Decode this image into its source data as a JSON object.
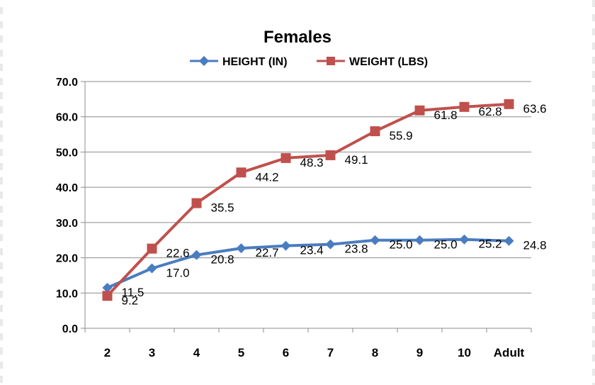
{
  "chart_data": {
    "type": "line",
    "title": "Females",
    "categories": [
      "2",
      "3",
      "4",
      "5",
      "6",
      "7",
      "8",
      "9",
      "10",
      "Adult"
    ],
    "series": [
      {
        "name": "HEIGHT (IN)",
        "color": "#4a7cc0",
        "marker": "diamond",
        "values": [
          11.5,
          17.0,
          20.8,
          22.7,
          23.4,
          23.8,
          25.0,
          25.0,
          25.2,
          24.8
        ],
        "labels": [
          "11.5",
          "17.0",
          "20.8",
          "22.7",
          "23.4",
          "23.8",
          "25.0",
          "25.0",
          "25.2",
          "24.8"
        ]
      },
      {
        "name": "WEIGHT (LBS)",
        "color": "#c0504d",
        "marker": "square",
        "values": [
          9.2,
          22.6,
          35.5,
          44.2,
          48.3,
          49.1,
          55.9,
          61.8,
          62.8,
          63.6
        ],
        "labels": [
          "9.2",
          "22.6",
          "35.5",
          "44.2",
          "48.3",
          "49.1",
          "55.9",
          "61.8",
          "62.8",
          "63.6"
        ]
      }
    ],
    "ylim": [
      0,
      70
    ],
    "yticks": [
      "0.0",
      "10.0",
      "20.0",
      "30.0",
      "40.0",
      "50.0",
      "60.0",
      "70.0"
    ],
    "grid": true,
    "legend": "top"
  }
}
